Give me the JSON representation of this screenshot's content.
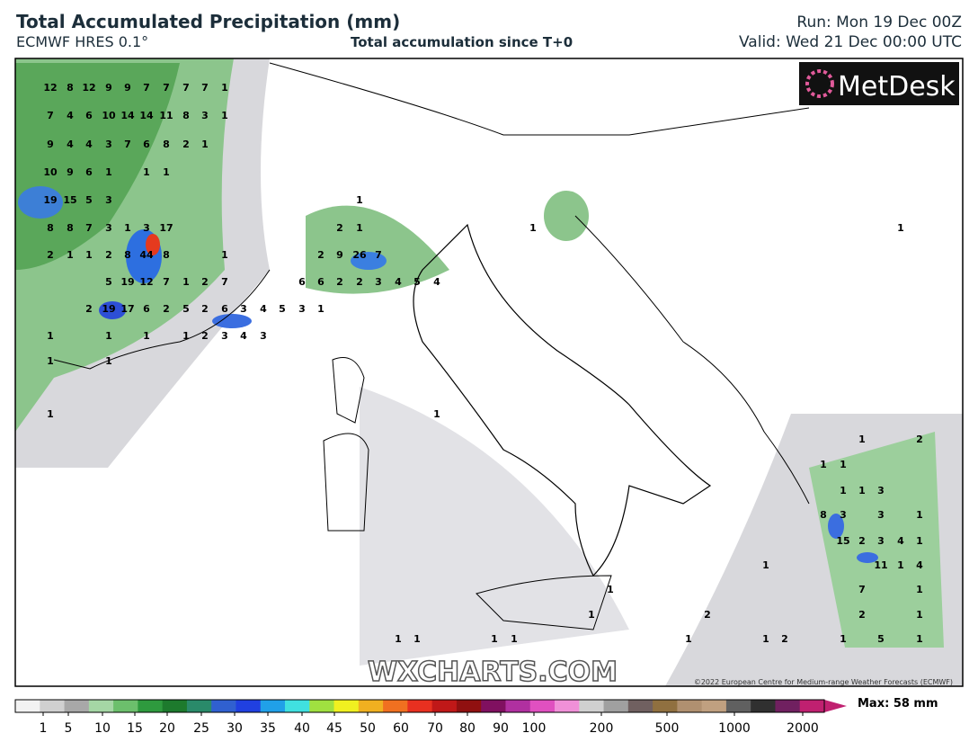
{
  "header": {
    "title": "Total Accumulated Precipitation (mm)",
    "model": "ECMWF HRES 0.1°",
    "subtitle": "Total accumulation since T+0",
    "run": "Run: Mon 19 Dec 00Z",
    "valid": "Valid: Wed 21 Dec 00:00 UTC"
  },
  "map": {
    "logo": "MetDesk",
    "watermark": "WXCHARTS.COM",
    "copyright": "©2022 European Centre for Medium-range Weather Forecasts (ECMWF)",
    "labels": [
      12,
      8,
      12,
      9,
      9,
      7,
      7,
      7,
      7,
      1,
      7,
      4,
      6,
      10,
      14,
      14,
      11,
      8,
      3,
      1,
      9,
      4,
      4,
      3,
      7,
      6,
      8,
      2,
      1,
      10,
      9,
      6,
      1,
      1,
      1,
      19,
      15,
      5,
      3,
      1,
      8,
      8,
      7,
      3,
      1,
      3,
      17,
      2,
      1,
      1,
      1,
      2,
      1,
      1,
      2,
      8,
      44,
      8,
      1,
      2,
      9,
      26,
      7,
      5,
      19,
      12,
      7,
      1,
      2,
      7,
      6,
      6,
      2,
      2,
      3,
      4,
      5,
      4,
      2,
      19,
      17,
      6,
      2,
      5,
      2,
      6,
      3,
      4,
      5,
      3,
      1,
      1,
      1,
      1,
      1,
      2,
      3,
      4,
      3,
      1,
      1,
      1,
      1,
      1,
      2,
      1,
      1,
      1,
      1,
      3,
      8,
      3,
      3,
      1,
      15,
      2,
      3,
      4,
      1,
      1,
      11,
      1,
      4,
      1,
      7,
      1,
      1,
      2,
      2,
      1,
      1,
      1,
      1,
      1,
      1,
      1,
      2,
      1,
      5,
      1
    ]
  },
  "legend": {
    "ticks": [
      1,
      5,
      10,
      15,
      20,
      25,
      30,
      35,
      40,
      45,
      50,
      60,
      70,
      80,
      90,
      100,
      200,
      500,
      1000,
      2000
    ],
    "max": "Max: 58 mm"
  }
}
